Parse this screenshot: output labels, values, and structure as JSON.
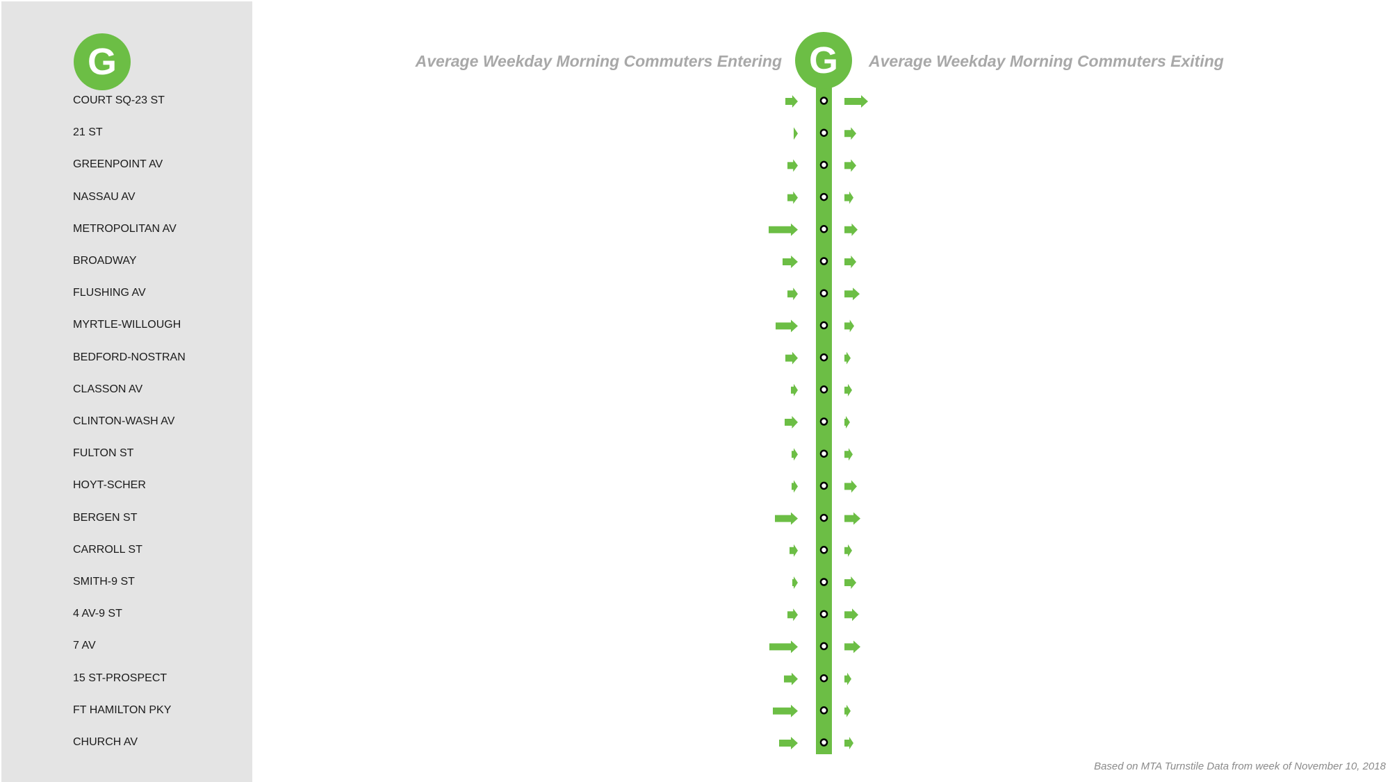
{
  "line": {
    "letter": "G",
    "color": "#6cbe45"
  },
  "headings": {
    "entering": "Average Weekday Morning Commuters Entering",
    "exiting": "Average Weekday Morning Commuters Exiting"
  },
  "footer": "Based on MTA Turnstile Data from week of November 10, 2018",
  "chart_data": {
    "type": "bar",
    "title": "",
    "categories": [
      "COURT SQ-23 ST",
      "21 ST",
      "GREENPOINT AV",
      "NASSAU AV",
      "METROPOLITAN AV",
      "BROADWAY",
      "FLUSHING AV",
      "MYRTLE-WILLOUGH",
      "BEDFORD-NOSTRAN",
      "CLASSON AV",
      "CLINTON-WASH AV",
      "FULTON ST",
      "HOYT-SCHER",
      "BERGEN ST",
      "CARROLL ST",
      "SMITH-9 ST",
      "4 AV-9 ST",
      "7 AV",
      "15 ST-PROSPECT",
      "FT HAMILTON PKY",
      "CHURCH AV"
    ],
    "series": [
      {
        "name": "Average Weekday Morning Commuters Entering",
        "values": [
          18,
          6,
          15,
          15,
          42,
          22,
          15,
          32,
          18,
          10,
          19,
          9,
          9,
          33,
          12,
          8,
          15,
          41,
          20,
          36,
          27
        ]
      },
      {
        "name": "Average Weekday Morning Commuters Exiting",
        "values": [
          34,
          17,
          17,
          13,
          19,
          17,
          22,
          14,
          9,
          11,
          8,
          12,
          18,
          23,
          11,
          17,
          20,
          23,
          10,
          9,
          13
        ]
      }
    ],
    "grid": false,
    "legend": "none"
  }
}
